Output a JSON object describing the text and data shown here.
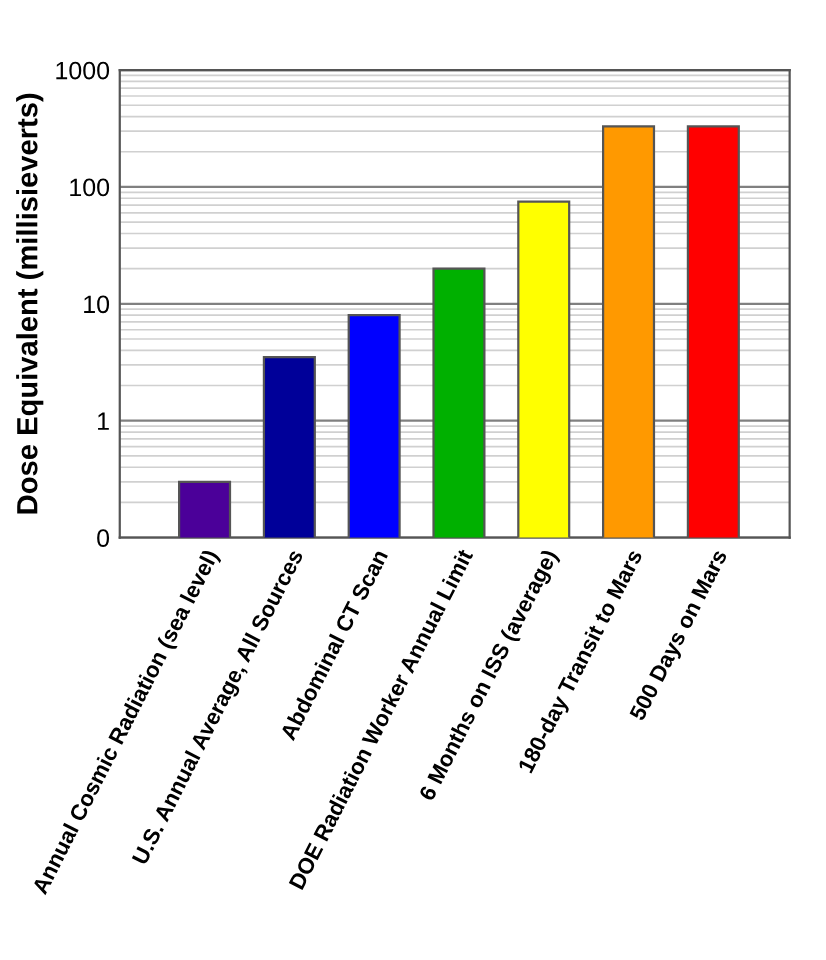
{
  "chart_data": {
    "type": "bar",
    "ylabel": "Dose Equivalent (millisieverts)",
    "categories": [
      "Annual Cosmic Radiation (sea level)",
      "U.S. Annual Average, All Sources",
      "Abdominal CT Scan",
      "DOE Radiation Worker Annual Limit",
      "6 Months on ISS (average)",
      "180-day Transit to Mars",
      "500 Days on Mars"
    ],
    "values": [
      0.3,
      3.5,
      8,
      20,
      75,
      330,
      330
    ],
    "colors": [
      "#4b0099",
      "#000099",
      "#0000ff",
      "#00b000",
      "#ffff00",
      "#ff9900",
      "#ff0000"
    ],
    "log": "y",
    "ylim": [
      0.1,
      1000
    ],
    "yticks": [
      {
        "value": 0.1,
        "label": "0"
      },
      1,
      10,
      100,
      1000
    ],
    "grid": true
  }
}
